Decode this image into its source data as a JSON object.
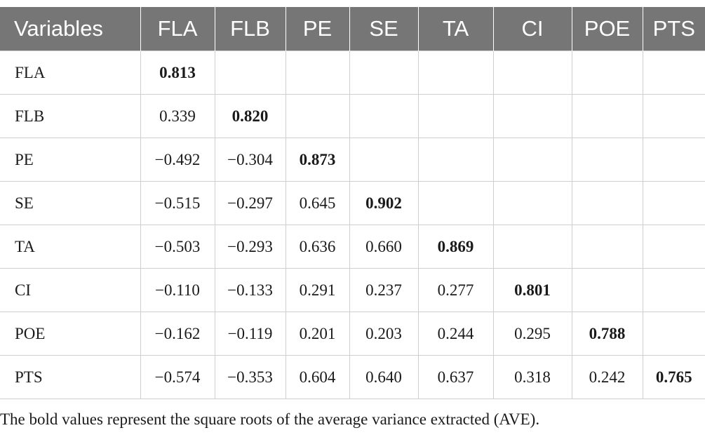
{
  "table": {
    "headers": [
      "Variables",
      "FLA",
      "FLB",
      "PE",
      "SE",
      "TA",
      "CI",
      "POE",
      "PTS"
    ],
    "rows": [
      {
        "label": "FLA",
        "values": [
          "0.813",
          "",
          "",
          "",
          "",
          "",
          "",
          ""
        ]
      },
      {
        "label": "FLB",
        "values": [
          "0.339",
          "0.820",
          "",
          "",
          "",
          "",
          "",
          ""
        ]
      },
      {
        "label": "PE",
        "values": [
          "−0.492",
          "−0.304",
          "0.873",
          "",
          "",
          "",
          "",
          ""
        ]
      },
      {
        "label": "SE",
        "values": [
          "−0.515",
          "−0.297",
          "0.645",
          "0.902",
          "",
          "",
          "",
          ""
        ]
      },
      {
        "label": "TA",
        "values": [
          "−0.503",
          "−0.293",
          "0.636",
          "0.660",
          "0.869",
          "",
          "",
          ""
        ]
      },
      {
        "label": "CI",
        "values": [
          "−0.110",
          "−0.133",
          "0.291",
          "0.237",
          "0.277",
          "0.801",
          "",
          ""
        ]
      },
      {
        "label": "POE",
        "values": [
          "−0.162",
          "−0.119",
          "0.201",
          "0.203",
          "0.244",
          "0.295",
          "0.788",
          ""
        ]
      },
      {
        "label": "PTS",
        "values": [
          "−0.574",
          "−0.353",
          "0.604",
          "0.640",
          "0.637",
          "0.318",
          "0.242",
          "0.765"
        ]
      }
    ]
  },
  "footnote": "The bold values represent the square roots of the average variance extracted (AVE).",
  "colors": {
    "header_bg": "#767676",
    "header_text": "#ffffff",
    "grid_line": "#cfcfcf"
  }
}
